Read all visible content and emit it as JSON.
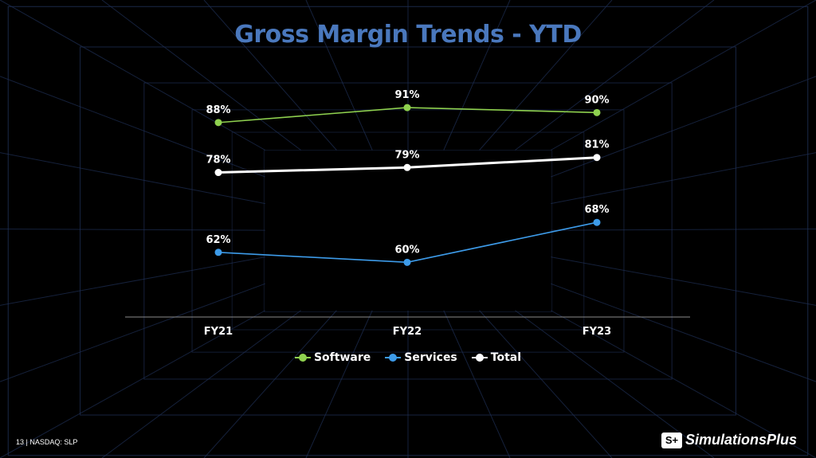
{
  "slide": {
    "title": "Gross Margin Trends - YTD",
    "footer": "13 | NASDAQ: SLP",
    "logo_mark": "S+",
    "logo_text": "SimulationsPlus"
  },
  "colors": {
    "title": "#4a78bd",
    "software": "#8fd14f",
    "services": "#3d9be9",
    "total": "#ffffff",
    "grid": "#1f2f55",
    "axis": "#8c8c8c"
  },
  "chart_data": {
    "type": "line",
    "title": "Gross Margin Trends - YTD",
    "categories": [
      "FY21",
      "FY22",
      "FY23"
    ],
    "series": [
      {
        "name": "Software",
        "values": [
          88,
          91,
          90
        ],
        "labels": [
          "88%",
          "91%",
          "90%"
        ],
        "color": "#8fd14f"
      },
      {
        "name": "Services",
        "values": [
          62,
          60,
          68
        ],
        "labels": [
          "62%",
          "60%",
          "68%"
        ],
        "color": "#3d9be9"
      },
      {
        "name": "Total",
        "values": [
          78,
          79,
          81
        ],
        "labels": [
          "78%",
          "79%",
          "81%"
        ],
        "color": "#ffffff"
      }
    ],
    "ylim": [
      50,
      95
    ],
    "grid": false,
    "legend": "bottom-center"
  }
}
